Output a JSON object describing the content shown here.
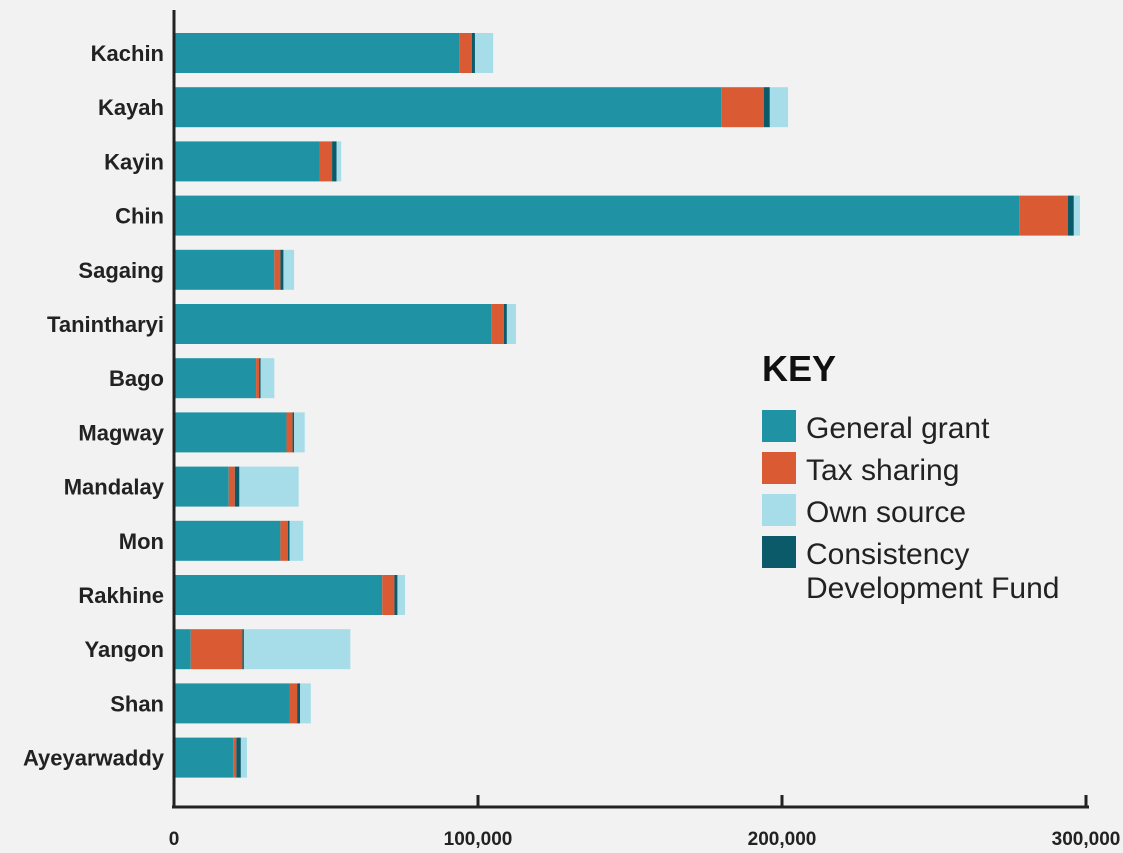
{
  "chart_data": {
    "type": "bar",
    "orientation": "horizontal",
    "stacked": true,
    "categories": [
      "Kachin",
      "Kayah",
      "Kayin",
      "Chin",
      "Sagaing",
      "Tanintharyi",
      "Bago",
      "Magway",
      "Mandalay",
      "Mon",
      "Rakhine",
      "Yangon",
      "Shan",
      "Ayeyarwaddy"
    ],
    "series": [
      {
        "name": "General grant",
        "color": "#1f93a3",
        "values": [
          94000,
          180000,
          48000,
          278000,
          33000,
          104500,
          27000,
          37000,
          18000,
          35000,
          68500,
          5500,
          38000,
          19500
        ]
      },
      {
        "name": "Tax sharing",
        "color": "#d95a33",
        "values": [
          4000,
          14000,
          4000,
          16000,
          2000,
          4000,
          1000,
          2000,
          2000,
          2500,
          4000,
          17000,
          2500,
          1000
        ]
      },
      {
        "name": "Consistency Development Fund",
        "color": "#0a5a6a",
        "values": [
          1000,
          2000,
          1500,
          2000,
          1000,
          1000,
          500,
          500,
          1500,
          500,
          1000,
          500,
          1000,
          1500
        ]
      },
      {
        "name": "Own source",
        "color": "#a6dde9",
        "values": [
          6000,
          6000,
          1500,
          2000,
          3500,
          3000,
          4500,
          3500,
          19500,
          4500,
          2500,
          35000,
          3500,
          2000
        ]
      }
    ],
    "x_ticks": [
      "0",
      "100,000",
      "200,000",
      "300,000"
    ],
    "xlim": [
      0,
      300000
    ],
    "legend": {
      "title": "KEY",
      "position": "right",
      "items": [
        {
          "label_lines": [
            "General grant"
          ],
          "color": "#1f93a3"
        },
        {
          "label_lines": [
            "Tax sharing"
          ],
          "color": "#d95a33"
        },
        {
          "label_lines": [
            "Own source"
          ],
          "color": "#a6dde9"
        },
        {
          "label_lines": [
            "Consistency",
            "Development Fund"
          ],
          "color": "#0a5a6a"
        }
      ]
    },
    "grid": false
  }
}
